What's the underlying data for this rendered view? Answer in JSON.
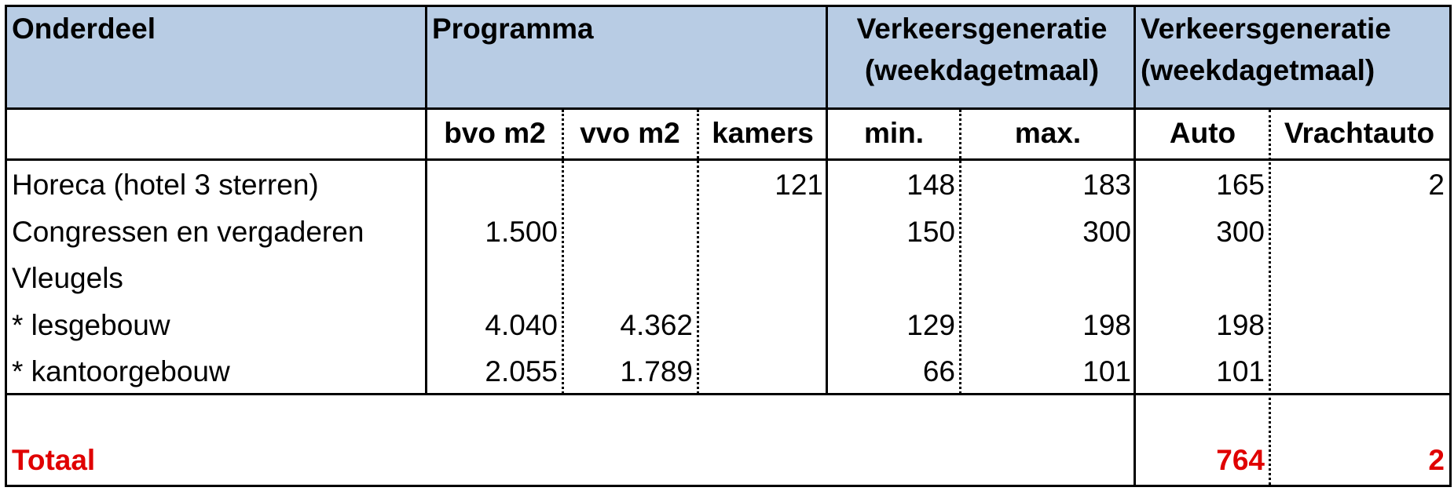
{
  "header": {
    "onderdeel": "Onderdeel",
    "programma": "Programma",
    "verkeer1_l1": "Verkeersgeneratie",
    "verkeer1_l2": "(weekdagetmaal)",
    "verkeer2_l1": "Verkeersgeneratie",
    "verkeer2_l2": "(weekdagetmaal)"
  },
  "subheader": [
    "bvo m2",
    "vvo m2",
    "kamers",
    "min.",
    "max.",
    "Auto",
    "Vrachtauto"
  ],
  "rows": [
    {
      "label": "Horeca (hotel 3 sterren)",
      "bvo": "",
      "vvo": "",
      "kamers": "121",
      "min": "148",
      "max": "183",
      "auto": "165",
      "vracht": "2"
    },
    {
      "label": "Congressen en vergaderen",
      "bvo": "1.500",
      "vvo": "",
      "kamers": "",
      "min": "150",
      "max": "300",
      "auto": "300",
      "vracht": ""
    },
    {
      "label": "Vleugels",
      "bvo": "",
      "vvo": "",
      "kamers": "",
      "min": "",
      "max": "",
      "auto": "",
      "vracht": ""
    },
    {
      "label": "* lesgebouw",
      "bvo": "4.040",
      "vvo": "4.362",
      "kamers": "",
      "min": "129",
      "max": "198",
      "auto": "198",
      "vracht": ""
    },
    {
      "label": "* kantoorgebouw",
      "bvo": "2.055",
      "vvo": "1.789",
      "kamers": "",
      "min": "66",
      "max": "101",
      "auto": "101",
      "vracht": ""
    }
  ],
  "total": {
    "label": "Totaal",
    "auto": "764",
    "vracht": "2"
  }
}
